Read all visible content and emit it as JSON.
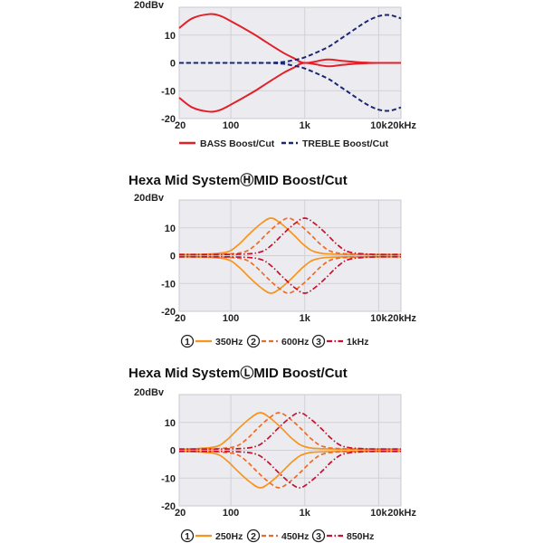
{
  "colors": {
    "bass": "#e2202a",
    "treble": "#1c2673",
    "c1": "#f7941d",
    "c2": "#f26a22",
    "c3": "#c4122f",
    "plot_bg": "#ececf0",
    "grid": "#d0d0d6"
  },
  "chart_data": [
    {
      "type": "line",
      "title": "",
      "xlabel": "",
      "ylabel": "",
      "xscale": "log",
      "xlim": [
        20,
        20000
      ],
      "ylim": [
        -20,
        20
      ],
      "xticks": [
        {
          "v": 20,
          "label": "20"
        },
        {
          "v": 100,
          "label": "100"
        },
        {
          "v": 1000,
          "label": "1k"
        },
        {
          "v": 10000,
          "label": "10k"
        },
        {
          "v": 20000,
          "label": "20kHz"
        }
      ],
      "yticks": [
        {
          "v": 20,
          "label": "20dBv"
        },
        {
          "v": 10,
          "label": "10"
        },
        {
          "v": 0,
          "label": "0"
        },
        {
          "v": -10,
          "label": "-10"
        },
        {
          "v": -20,
          "label": "-20"
        }
      ],
      "grid": true,
      "legend_position": "bottom",
      "series": [
        {
          "name": "BASS Boost/Cut",
          "color_key": "bass",
          "style": "solid",
          "x": [
            20,
            30,
            50,
            70,
            100,
            200,
            300,
            500,
            700,
            1000,
            2000,
            3000,
            5000,
            7000,
            10000,
            14000,
            20000
          ],
          "boost": [
            12.5,
            16,
            17.5,
            17,
            15,
            10.5,
            7.5,
            3.8,
            1.8,
            0,
            1.2,
            0.8,
            0.3,
            0.1,
            0,
            0,
            0
          ],
          "cut": [
            -12.5,
            -16,
            -17.5,
            -17,
            -15,
            -10.5,
            -7.5,
            -3.8,
            -1.8,
            0,
            -1.2,
            -0.8,
            -0.3,
            -0.1,
            0,
            0,
            0
          ]
        },
        {
          "name": "TREBLE Boost/Cut",
          "color_key": "treble",
          "style": "dash",
          "x": [
            20,
            100,
            300,
            500,
            700,
            1000,
            2000,
            3000,
            5000,
            7000,
            10000,
            14000,
            20000
          ],
          "boost": [
            0,
            0,
            0,
            0.3,
            1,
            2,
            5.5,
            8.5,
            12.5,
            15,
            16.8,
            17.2,
            16
          ],
          "cut": [
            0,
            0,
            0,
            -0.3,
            -1,
            -2,
            -5.5,
            -8.5,
            -12.5,
            -15,
            -16.8,
            -17.2,
            -16
          ]
        }
      ]
    },
    {
      "type": "line",
      "title": "Hexa Mid SystemⒽMID Boost/Cut",
      "xscale": "log",
      "xlim": [
        20,
        20000
      ],
      "ylim": [
        -20,
        20
      ],
      "xticks": [
        {
          "v": 20,
          "label": "20"
        },
        {
          "v": 100,
          "label": "100"
        },
        {
          "v": 1000,
          "label": "1k"
        },
        {
          "v": 10000,
          "label": "10k"
        },
        {
          "v": 20000,
          "label": "20kHz"
        }
      ],
      "yticks": [
        {
          "v": 20,
          "label": "20dBv"
        },
        {
          "v": 10,
          "label": "10"
        },
        {
          "v": 0,
          "label": "0"
        },
        {
          "v": -10,
          "label": "-10"
        },
        {
          "v": -20,
          "label": "-20"
        }
      ],
      "grid": true,
      "legend_position": "bottom",
      "series": [
        {
          "num": "1",
          "name": "350Hz",
          "color_key": "c1",
          "style": "solid",
          "x": [
            20,
            44,
            88,
            125,
            175,
            250,
            350,
            490,
            700,
            980,
            1400,
            2800,
            20000
          ],
          "boost": [
            0.4,
            0.5,
            1.3,
            3.8,
            7.6,
            11.3,
            13.5,
            11.3,
            7.6,
            3.8,
            1.3,
            0.5,
            0.4
          ],
          "cut": [
            -0.4,
            -0.5,
            -1.3,
            -3.8,
            -7.6,
            -11.3,
            -13.5,
            -11.3,
            -7.6,
            -3.8,
            -1.3,
            -0.5,
            -0.4
          ]
        },
        {
          "num": "2",
          "name": "600Hz",
          "color_key": "c2",
          "style": "dash",
          "x": [
            20,
            75,
            150,
            214,
            300,
            429,
            600,
            840,
            1200,
            1680,
            2400,
            4800,
            20000
          ],
          "boost": [
            0.4,
            0.5,
            1.3,
            3.8,
            7.6,
            11.3,
            13.5,
            11.3,
            7.6,
            3.8,
            1.3,
            0.5,
            0.4
          ],
          "cut": [
            -0.4,
            -0.5,
            -1.3,
            -3.8,
            -7.6,
            -11.3,
            -13.5,
            -11.3,
            -7.6,
            -3.8,
            -1.3,
            -0.5,
            -0.4
          ]
        },
        {
          "num": "3",
          "name": "1kHz",
          "color_key": "c3",
          "style": "dashdot",
          "x": [
            20,
            125,
            250,
            357,
            500,
            714,
            1000,
            1400,
            2000,
            2800,
            4000,
            8000,
            20000
          ],
          "boost": [
            0.4,
            0.5,
            1.3,
            3.8,
            7.6,
            11.3,
            13.5,
            11.3,
            7.6,
            3.8,
            1.3,
            0.5,
            0.4
          ],
          "cut": [
            -0.4,
            -0.5,
            -1.3,
            -3.8,
            -7.6,
            -11.3,
            -13.5,
            -11.3,
            -7.6,
            -3.8,
            -1.3,
            -0.5,
            -0.4
          ]
        }
      ]
    },
    {
      "type": "line",
      "title": "Hexa Mid SystemⓁMID Boost/Cut",
      "xscale": "log",
      "xlim": [
        20,
        20000
      ],
      "ylim": [
        -20,
        20
      ],
      "xticks": [
        {
          "v": 20,
          "label": "20"
        },
        {
          "v": 100,
          "label": "100"
        },
        {
          "v": 1000,
          "label": "1k"
        },
        {
          "v": 10000,
          "label": "10k"
        },
        {
          "v": 20000,
          "label": "20kHz"
        }
      ],
      "yticks": [
        {
          "v": 20,
          "label": "20dBv"
        },
        {
          "v": 10,
          "label": "10"
        },
        {
          "v": 0,
          "label": "0"
        },
        {
          "v": -10,
          "label": "-10"
        },
        {
          "v": -20,
          "label": "-20"
        }
      ],
      "grid": true,
      "legend_position": "bottom",
      "series": [
        {
          "num": "1",
          "name": "250Hz",
          "color_key": "c1",
          "style": "solid",
          "x": [
            20,
            31,
            63,
            89,
            125,
            179,
            250,
            350,
            500,
            700,
            1000,
            2000,
            20000
          ],
          "boost": [
            0.4,
            0.5,
            1.3,
            3.8,
            7.6,
            11.3,
            13.5,
            11.3,
            7.6,
            3.8,
            1.3,
            0.5,
            0.4
          ],
          "cut": [
            -0.4,
            -0.5,
            -1.3,
            -3.8,
            -7.6,
            -11.3,
            -13.5,
            -11.3,
            -7.6,
            -3.8,
            -1.3,
            -0.5,
            -0.4
          ]
        },
        {
          "num": "2",
          "name": "450Hz",
          "color_key": "c2",
          "style": "dash",
          "x": [
            20,
            56,
            113,
            161,
            225,
            321,
            450,
            630,
            900,
            1260,
            1800,
            3600,
            20000
          ],
          "boost": [
            0.4,
            0.5,
            1.3,
            3.8,
            7.6,
            11.3,
            13.5,
            11.3,
            7.6,
            3.8,
            1.3,
            0.5,
            0.4
          ],
          "cut": [
            -0.4,
            -0.5,
            -1.3,
            -3.8,
            -7.6,
            -11.3,
            -13.5,
            -11.3,
            -7.6,
            -3.8,
            -1.3,
            -0.5,
            -0.4
          ]
        },
        {
          "num": "3",
          "name": "850Hz",
          "color_key": "c3",
          "style": "dashdot",
          "x": [
            20,
            106,
            213,
            304,
            425,
            607,
            850,
            1190,
            1700,
            2380,
            3400,
            6800,
            20000
          ],
          "boost": [
            0.4,
            0.5,
            1.3,
            3.8,
            7.6,
            11.3,
            13.5,
            11.3,
            7.6,
            3.8,
            1.3,
            0.5,
            0.4
          ],
          "cut": [
            -0.4,
            -0.5,
            -1.3,
            -3.8,
            -7.6,
            -11.3,
            -13.5,
            -11.3,
            -7.6,
            -3.8,
            -1.3,
            -0.5,
            -0.4
          ]
        }
      ]
    }
  ]
}
